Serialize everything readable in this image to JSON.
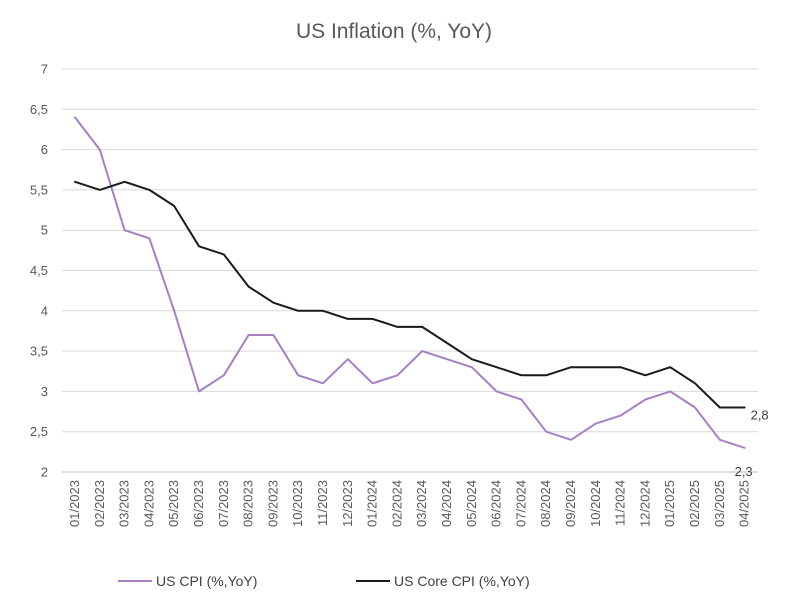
{
  "chart_data": {
    "type": "line",
    "title": "US Inflation (%, YoY)",
    "xlabel": "",
    "ylabel": "",
    "ylim": [
      2,
      7
    ],
    "yticks": [
      "2",
      "2,5",
      "3",
      "3,5",
      "4",
      "4,5",
      "5",
      "5,5",
      "6",
      "6,5",
      "7"
    ],
    "grid": true,
    "legend_position": "bottom",
    "categories": [
      "01/2023",
      "02/2023",
      "03/2023",
      "04/2023",
      "05/2023",
      "06/2023",
      "07/2023",
      "08/2023",
      "09/2023",
      "10/2023",
      "11/2023",
      "12/2023",
      "01/2024",
      "02/2024",
      "03/2024",
      "04/2024",
      "05/2024",
      "06/2024",
      "07/2024",
      "08/2024",
      "09/2024",
      "10/2024",
      "11/2024",
      "12/2024",
      "01/2025",
      "02/2025",
      "03/2025",
      "04/2025"
    ],
    "series": [
      {
        "name": "US CPI (%,YoY)",
        "color": "#a77fc4",
        "values": [
          6.4,
          6.0,
          5.0,
          4.9,
          4.0,
          3.0,
          3.2,
          3.7,
          3.7,
          3.2,
          3.1,
          3.4,
          3.1,
          3.2,
          3.5,
          3.4,
          3.3,
          3.0,
          2.9,
          2.5,
          2.4,
          2.6,
          2.7,
          2.9,
          3.0,
          2.8,
          2.4,
          2.3
        ],
        "end_label": "2,3"
      },
      {
        "name": "US Core CPI (%,YoY)",
        "color": "#1a1a1a",
        "values": [
          5.6,
          5.5,
          5.6,
          5.5,
          5.3,
          4.8,
          4.7,
          4.3,
          4.1,
          4.0,
          4.0,
          3.9,
          3.9,
          3.8,
          3.8,
          3.6,
          3.4,
          3.3,
          3.2,
          3.2,
          3.3,
          3.3,
          3.3,
          3.2,
          3.3,
          3.1,
          2.8,
          2.8
        ],
        "end_label": "2,8"
      }
    ]
  }
}
